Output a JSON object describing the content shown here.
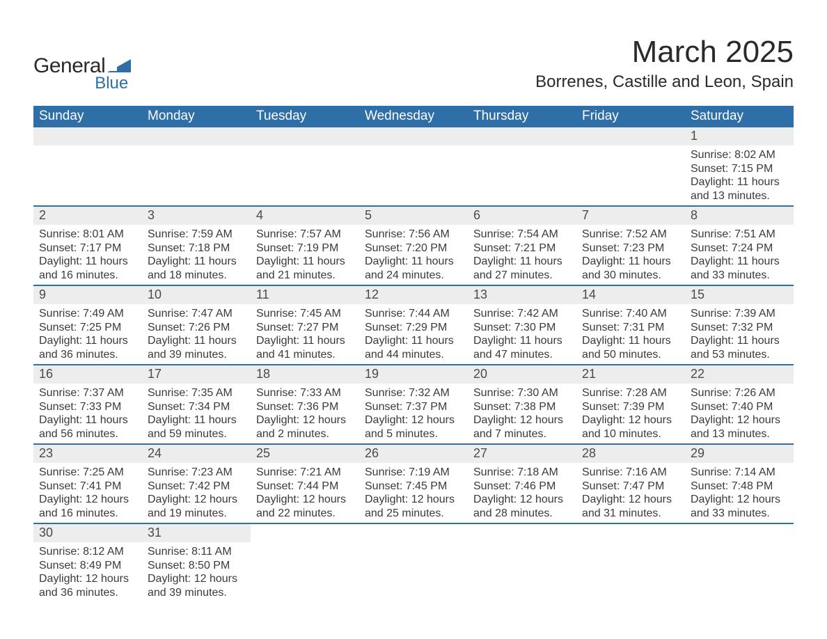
{
  "brand": {
    "general": "General",
    "blue": "Blue",
    "shape_fill": "#2e6fa8"
  },
  "title": "March 2025",
  "location": "Borrenes, Castille and Leon, Spain",
  "colors": {
    "header_bg": "#2e6fa8",
    "header_text": "#ffffff",
    "daynum_bg": "#ededed",
    "row_border": "#2e6fa8",
    "body_text": "#3a3a3a",
    "title_text": "#2a2a2a",
    "background": "#ffffff"
  },
  "typography": {
    "month_title_fontsize": 44,
    "location_fontsize": 24,
    "header_cell_fontsize": 19,
    "daynum_fontsize": 18,
    "content_fontsize": 16,
    "font_family": "Arial"
  },
  "weekdays": [
    "Sunday",
    "Monday",
    "Tuesday",
    "Wednesday",
    "Thursday",
    "Friday",
    "Saturday"
  ],
  "labels": {
    "sunrise": "Sunrise:",
    "sunset": "Sunset:",
    "daylight": "Daylight:"
  },
  "weeks": [
    [
      null,
      null,
      null,
      null,
      null,
      null,
      {
        "n": "1",
        "sunrise": "8:02 AM",
        "sunset": "7:15 PM",
        "daylight": "11 hours and 13 minutes."
      }
    ],
    [
      {
        "n": "2",
        "sunrise": "8:01 AM",
        "sunset": "7:17 PM",
        "daylight": "11 hours and 16 minutes."
      },
      {
        "n": "3",
        "sunrise": "7:59 AM",
        "sunset": "7:18 PM",
        "daylight": "11 hours and 18 minutes."
      },
      {
        "n": "4",
        "sunrise": "7:57 AM",
        "sunset": "7:19 PM",
        "daylight": "11 hours and 21 minutes."
      },
      {
        "n": "5",
        "sunrise": "7:56 AM",
        "sunset": "7:20 PM",
        "daylight": "11 hours and 24 minutes."
      },
      {
        "n": "6",
        "sunrise": "7:54 AM",
        "sunset": "7:21 PM",
        "daylight": "11 hours and 27 minutes."
      },
      {
        "n": "7",
        "sunrise": "7:52 AM",
        "sunset": "7:23 PM",
        "daylight": "11 hours and 30 minutes."
      },
      {
        "n": "8",
        "sunrise": "7:51 AM",
        "sunset": "7:24 PM",
        "daylight": "11 hours and 33 minutes."
      }
    ],
    [
      {
        "n": "9",
        "sunrise": "7:49 AM",
        "sunset": "7:25 PM",
        "daylight": "11 hours and 36 minutes."
      },
      {
        "n": "10",
        "sunrise": "7:47 AM",
        "sunset": "7:26 PM",
        "daylight": "11 hours and 39 minutes."
      },
      {
        "n": "11",
        "sunrise": "7:45 AM",
        "sunset": "7:27 PM",
        "daylight": "11 hours and 41 minutes."
      },
      {
        "n": "12",
        "sunrise": "7:44 AM",
        "sunset": "7:29 PM",
        "daylight": "11 hours and 44 minutes."
      },
      {
        "n": "13",
        "sunrise": "7:42 AM",
        "sunset": "7:30 PM",
        "daylight": "11 hours and 47 minutes."
      },
      {
        "n": "14",
        "sunrise": "7:40 AM",
        "sunset": "7:31 PM",
        "daylight": "11 hours and 50 minutes."
      },
      {
        "n": "15",
        "sunrise": "7:39 AM",
        "sunset": "7:32 PM",
        "daylight": "11 hours and 53 minutes."
      }
    ],
    [
      {
        "n": "16",
        "sunrise": "7:37 AM",
        "sunset": "7:33 PM",
        "daylight": "11 hours and 56 minutes."
      },
      {
        "n": "17",
        "sunrise": "7:35 AM",
        "sunset": "7:34 PM",
        "daylight": "11 hours and 59 minutes."
      },
      {
        "n": "18",
        "sunrise": "7:33 AM",
        "sunset": "7:36 PM",
        "daylight": "12 hours and 2 minutes."
      },
      {
        "n": "19",
        "sunrise": "7:32 AM",
        "sunset": "7:37 PM",
        "daylight": "12 hours and 5 minutes."
      },
      {
        "n": "20",
        "sunrise": "7:30 AM",
        "sunset": "7:38 PM",
        "daylight": "12 hours and 7 minutes."
      },
      {
        "n": "21",
        "sunrise": "7:28 AM",
        "sunset": "7:39 PM",
        "daylight": "12 hours and 10 minutes."
      },
      {
        "n": "22",
        "sunrise": "7:26 AM",
        "sunset": "7:40 PM",
        "daylight": "12 hours and 13 minutes."
      }
    ],
    [
      {
        "n": "23",
        "sunrise": "7:25 AM",
        "sunset": "7:41 PM",
        "daylight": "12 hours and 16 minutes."
      },
      {
        "n": "24",
        "sunrise": "7:23 AM",
        "sunset": "7:42 PM",
        "daylight": "12 hours and 19 minutes."
      },
      {
        "n": "25",
        "sunrise": "7:21 AM",
        "sunset": "7:44 PM",
        "daylight": "12 hours and 22 minutes."
      },
      {
        "n": "26",
        "sunrise": "7:19 AM",
        "sunset": "7:45 PM",
        "daylight": "12 hours and 25 minutes."
      },
      {
        "n": "27",
        "sunrise": "7:18 AM",
        "sunset": "7:46 PM",
        "daylight": "12 hours and 28 minutes."
      },
      {
        "n": "28",
        "sunrise": "7:16 AM",
        "sunset": "7:47 PM",
        "daylight": "12 hours and 31 minutes."
      },
      {
        "n": "29",
        "sunrise": "7:14 AM",
        "sunset": "7:48 PM",
        "daylight": "12 hours and 33 minutes."
      }
    ],
    [
      {
        "n": "30",
        "sunrise": "8:12 AM",
        "sunset": "8:49 PM",
        "daylight": "12 hours and 36 minutes."
      },
      {
        "n": "31",
        "sunrise": "8:11 AM",
        "sunset": "8:50 PM",
        "daylight": "12 hours and 39 minutes."
      },
      null,
      null,
      null,
      null,
      null
    ]
  ]
}
